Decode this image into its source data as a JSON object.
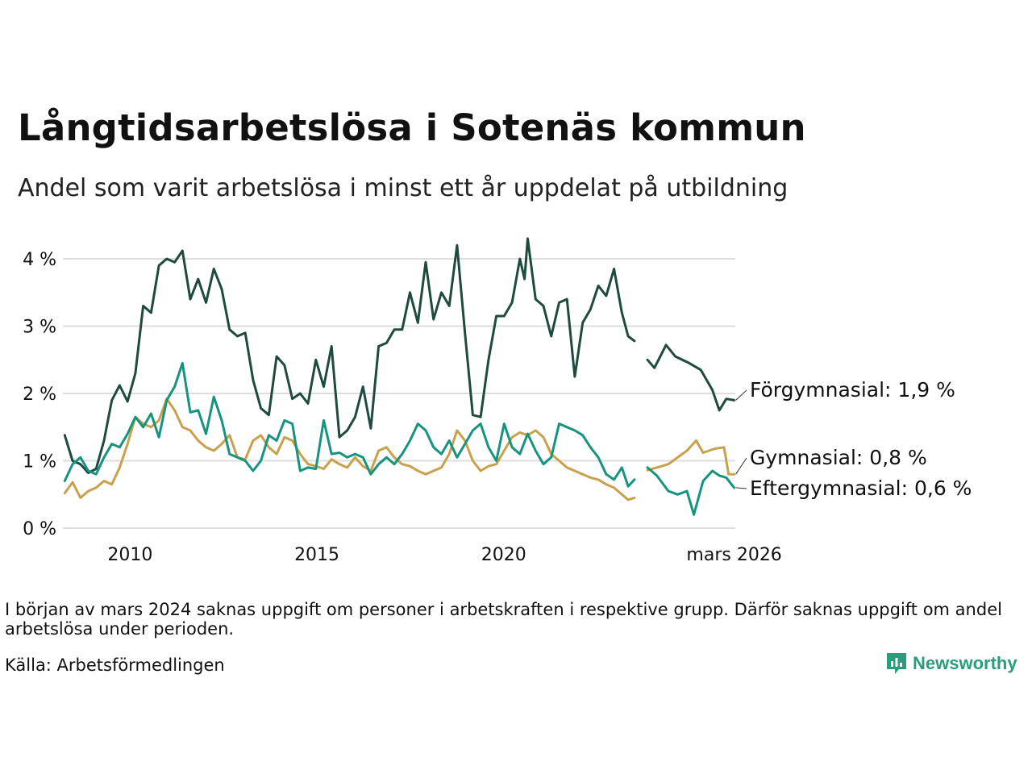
{
  "header": {
    "title": "Långtidsarbetslösa i Sotenäs kommun",
    "subtitle": "Andel som varit arbetslösa i minst ett år uppdelat på utbildning"
  },
  "footer": {
    "note": "I början av mars 2024 saknas uppgift om personer i arbetskraften i respektive grupp. Därför saknas uppgift om andel arbetslösa under perioden.",
    "source": "Källa: Arbetsförmedlingen",
    "brand": "Newsworthy"
  },
  "colors": {
    "forgymnasial": "#1f4a40",
    "gymnasial": "#c9a04c",
    "eftergymnasial": "#17947f",
    "grid": "#dedede",
    "brand": "#2a9d7d"
  },
  "chart_data": {
    "type": "line",
    "title": "Långtidsarbetslösa i Sotenäs kommun",
    "xlabel": "",
    "ylabel": "",
    "xlim": [
      2008.2,
      2026.2
    ],
    "ylim": [
      0,
      4.3
    ],
    "x_ticks": [
      {
        "value": 2010,
        "label": "2010"
      },
      {
        "value": 2015,
        "label": "2015"
      },
      {
        "value": 2020,
        "label": "2020"
      },
      {
        "value": 2026.17,
        "label": "mars 2026"
      }
    ],
    "y_ticks": [
      {
        "value": 0,
        "label": "0 %"
      },
      {
        "value": 1,
        "label": "1 %"
      },
      {
        "value": 2,
        "label": "2 %"
      },
      {
        "value": 3,
        "label": "3 %"
      },
      {
        "value": 4,
        "label": "4 %"
      }
    ],
    "gap": [
      2023.6,
      2024.3
    ],
    "series": [
      {
        "name": "Förgymnasial",
        "end_label": "Förgymnasial: 1,9 %",
        "color": "#1f4a40",
        "points": [
          [
            2008.25,
            1.38
          ],
          [
            2008.5,
            1.0
          ],
          [
            2008.75,
            0.95
          ],
          [
            2009.0,
            0.82
          ],
          [
            2009.25,
            0.88
          ],
          [
            2009.5,
            1.3
          ],
          [
            2009.75,
            1.9
          ],
          [
            2010.0,
            2.12
          ],
          [
            2010.25,
            1.88
          ],
          [
            2010.5,
            2.3
          ],
          [
            2010.75,
            3.3
          ],
          [
            2011.0,
            3.2
          ],
          [
            2011.25,
            3.9
          ],
          [
            2011.5,
            4.0
          ],
          [
            2011.75,
            3.95
          ],
          [
            2012.0,
            4.12
          ],
          [
            2012.25,
            3.4
          ],
          [
            2012.5,
            3.7
          ],
          [
            2012.75,
            3.35
          ],
          [
            2013.0,
            3.85
          ],
          [
            2013.25,
            3.55
          ],
          [
            2013.5,
            2.95
          ],
          [
            2013.75,
            2.85
          ],
          [
            2014.0,
            2.9
          ],
          [
            2014.25,
            2.2
          ],
          [
            2014.5,
            1.78
          ],
          [
            2014.75,
            1.68
          ],
          [
            2015.0,
            2.55
          ],
          [
            2015.25,
            2.42
          ],
          [
            2015.5,
            1.92
          ],
          [
            2015.75,
            2.0
          ],
          [
            2016.0,
            1.85
          ],
          [
            2016.25,
            2.5
          ],
          [
            2016.5,
            2.1
          ],
          [
            2016.75,
            2.7
          ],
          [
            2017.0,
            1.35
          ],
          [
            2017.25,
            1.45
          ],
          [
            2017.5,
            1.65
          ],
          [
            2017.75,
            2.1
          ],
          [
            2018.0,
            1.48
          ],
          [
            2018.25,
            2.7
          ],
          [
            2018.5,
            2.75
          ],
          [
            2018.75,
            2.95
          ],
          [
            2019.0,
            2.95
          ],
          [
            2019.25,
            3.5
          ],
          [
            2019.5,
            3.05
          ],
          [
            2019.75,
            3.95
          ],
          [
            2020.0,
            3.1
          ],
          [
            2020.25,
            3.5
          ],
          [
            2020.5,
            3.3
          ],
          [
            2020.75,
            4.2
          ],
          [
            2021.0,
            2.9
          ],
          [
            2021.25,
            1.68
          ],
          [
            2021.5,
            1.65
          ],
          [
            2021.75,
            2.5
          ],
          [
            2022.0,
            3.15
          ],
          [
            2022.25,
            3.15
          ],
          [
            2022.5,
            3.35
          ],
          [
            2022.75,
            4.0
          ],
          [
            2022.9,
            3.7
          ],
          [
            2023.0,
            4.3
          ],
          [
            2023.25,
            3.4
          ],
          [
            2023.5,
            3.3
          ],
          [
            2023.75,
            2.85
          ],
          [
            2024.0,
            3.35
          ],
          [
            2024.25,
            3.4
          ],
          [
            2024.5,
            2.25
          ],
          [
            2024.75,
            3.05
          ],
          [
            2025.0,
            3.25
          ],
          [
            2025.25,
            3.6
          ],
          [
            2025.5,
            3.45
          ],
          [
            2025.75,
            3.85
          ],
          [
            2026.0,
            3.2
          ],
          [
            2026.2,
            2.85
          ],
          [
            2026.4,
            2.78
          ],
          null,
          [
            2024.3,
            2.5
          ],
          [
            2024.45,
            2.38
          ],
          [
            2024.7,
            2.72
          ],
          [
            2024.9,
            2.55
          ],
          [
            2025.2,
            2.45
          ],
          [
            2025.45,
            2.35
          ],
          [
            2025.7,
            2.05
          ],
          [
            2025.85,
            1.75
          ],
          [
            2026.0,
            1.92
          ],
          [
            2026.17,
            1.9
          ]
        ]
      },
      {
        "name": "Gymnasial",
        "end_label": "Gymnasial: 0,8 %",
        "color": "#c9a04c",
        "points": [
          [
            2008.25,
            0.52
          ],
          [
            2008.5,
            0.68
          ],
          [
            2008.75,
            0.45
          ],
          [
            2009.0,
            0.55
          ],
          [
            2009.25,
            0.6
          ],
          [
            2009.5,
            0.7
          ],
          [
            2009.75,
            0.65
          ],
          [
            2010.0,
            0.9
          ],
          [
            2010.25,
            1.25
          ],
          [
            2010.5,
            1.65
          ],
          [
            2010.75,
            1.55
          ],
          [
            2011.0,
            1.5
          ],
          [
            2011.25,
            1.6
          ],
          [
            2011.5,
            1.92
          ],
          [
            2011.75,
            1.75
          ],
          [
            2012.0,
            1.5
          ],
          [
            2012.25,
            1.45
          ],
          [
            2012.5,
            1.3
          ],
          [
            2012.75,
            1.2
          ],
          [
            2013.0,
            1.15
          ],
          [
            2013.25,
            1.25
          ],
          [
            2013.5,
            1.38
          ],
          [
            2013.75,
            1.05
          ],
          [
            2014.0,
            1.02
          ],
          [
            2014.25,
            1.3
          ],
          [
            2014.5,
            1.38
          ],
          [
            2014.75,
            1.2
          ],
          [
            2015.0,
            1.1
          ],
          [
            2015.25,
            1.35
          ],
          [
            2015.5,
            1.3
          ],
          [
            2015.75,
            1.1
          ],
          [
            2016.0,
            0.95
          ],
          [
            2016.25,
            0.92
          ],
          [
            2016.5,
            0.88
          ],
          [
            2016.75,
            1.02
          ],
          [
            2017.0,
            0.95
          ],
          [
            2017.25,
            0.9
          ],
          [
            2017.5,
            1.05
          ],
          [
            2017.75,
            0.92
          ],
          [
            2018.0,
            0.85
          ],
          [
            2018.25,
            1.15
          ],
          [
            2018.5,
            1.2
          ],
          [
            2018.75,
            1.05
          ],
          [
            2019.0,
            0.95
          ],
          [
            2019.25,
            0.92
          ],
          [
            2019.5,
            0.85
          ],
          [
            2019.75,
            0.8
          ],
          [
            2020.0,
            0.85
          ],
          [
            2020.25,
            0.9
          ],
          [
            2020.5,
            1.1
          ],
          [
            2020.75,
            1.45
          ],
          [
            2021.0,
            1.3
          ],
          [
            2021.25,
            1.0
          ],
          [
            2021.5,
            0.85
          ],
          [
            2021.75,
            0.92
          ],
          [
            2022.0,
            0.95
          ],
          [
            2022.25,
            1.15
          ],
          [
            2022.5,
            1.35
          ],
          [
            2022.75,
            1.42
          ],
          [
            2023.0,
            1.38
          ],
          [
            2023.25,
            1.45
          ],
          [
            2023.5,
            1.35
          ],
          [
            2023.75,
            1.1
          ],
          [
            2024.0,
            1.0
          ],
          [
            2024.25,
            0.9
          ],
          [
            2024.5,
            0.85
          ],
          [
            2024.75,
            0.8
          ],
          [
            2025.0,
            0.75
          ],
          [
            2025.25,
            0.72
          ],
          [
            2025.5,
            0.65
          ],
          [
            2025.75,
            0.6
          ],
          [
            2026.0,
            0.5
          ],
          [
            2026.2,
            0.42
          ],
          [
            2026.4,
            0.45
          ],
          null,
          [
            2024.3,
            0.86
          ],
          [
            2024.5,
            0.9
          ],
          [
            2024.75,
            0.95
          ],
          [
            2024.95,
            1.05
          ],
          [
            2025.15,
            1.15
          ],
          [
            2025.35,
            1.3
          ],
          [
            2025.5,
            1.12
          ],
          [
            2025.75,
            1.18
          ],
          [
            2025.95,
            1.2
          ],
          [
            2026.05,
            0.8
          ],
          [
            2026.17,
            0.8
          ]
        ]
      },
      {
        "name": "Eftergymnasial",
        "end_label": "Eftergymnasial: 0,6 %",
        "color": "#17947f",
        "points": [
          [
            2008.25,
            0.7
          ],
          [
            2008.5,
            0.95
          ],
          [
            2008.75,
            1.05
          ],
          [
            2009.0,
            0.85
          ],
          [
            2009.25,
            0.8
          ],
          [
            2009.5,
            1.05
          ],
          [
            2009.75,
            1.25
          ],
          [
            2010.0,
            1.2
          ],
          [
            2010.25,
            1.4
          ],
          [
            2010.5,
            1.65
          ],
          [
            2010.75,
            1.5
          ],
          [
            2011.0,
            1.7
          ],
          [
            2011.25,
            1.35
          ],
          [
            2011.5,
            1.9
          ],
          [
            2011.75,
            2.1
          ],
          [
            2012.0,
            2.45
          ],
          [
            2012.25,
            1.72
          ],
          [
            2012.5,
            1.75
          ],
          [
            2012.75,
            1.4
          ],
          [
            2013.0,
            1.95
          ],
          [
            2013.25,
            1.6
          ],
          [
            2013.5,
            1.1
          ],
          [
            2013.75,
            1.05
          ],
          [
            2014.0,
            1.0
          ],
          [
            2014.25,
            0.85
          ],
          [
            2014.5,
            1.0
          ],
          [
            2014.75,
            1.38
          ],
          [
            2015.0,
            1.3
          ],
          [
            2015.25,
            1.6
          ],
          [
            2015.5,
            1.55
          ],
          [
            2015.75,
            0.85
          ],
          [
            2016.0,
            0.9
          ],
          [
            2016.25,
            0.88
          ],
          [
            2016.5,
            1.6
          ],
          [
            2016.75,
            1.1
          ],
          [
            2017.0,
            1.12
          ],
          [
            2017.25,
            1.05
          ],
          [
            2017.5,
            1.1
          ],
          [
            2017.75,
            1.05
          ],
          [
            2018.0,
            0.8
          ],
          [
            2018.25,
            0.95
          ],
          [
            2018.5,
            1.05
          ],
          [
            2018.75,
            0.95
          ],
          [
            2019.0,
            1.1
          ],
          [
            2019.25,
            1.3
          ],
          [
            2019.5,
            1.55
          ],
          [
            2019.75,
            1.45
          ],
          [
            2020.0,
            1.2
          ],
          [
            2020.25,
            1.1
          ],
          [
            2020.5,
            1.3
          ],
          [
            2020.75,
            1.05
          ],
          [
            2021.0,
            1.25
          ],
          [
            2021.25,
            1.45
          ],
          [
            2021.5,
            1.55
          ],
          [
            2021.75,
            1.2
          ],
          [
            2022.0,
            1.0
          ],
          [
            2022.25,
            1.55
          ],
          [
            2022.5,
            1.2
          ],
          [
            2022.75,
            1.1
          ],
          [
            2023.0,
            1.4
          ],
          [
            2023.25,
            1.15
          ],
          [
            2023.5,
            0.95
          ],
          [
            2023.75,
            1.05
          ],
          [
            2024.0,
            1.55
          ],
          [
            2024.25,
            1.5
          ],
          [
            2024.5,
            1.45
          ],
          [
            2024.75,
            1.38
          ],
          [
            2025.0,
            1.2
          ],
          [
            2025.25,
            1.05
          ],
          [
            2025.5,
            0.8
          ],
          [
            2025.75,
            0.72
          ],
          [
            2026.0,
            0.9
          ],
          [
            2026.2,
            0.62
          ],
          [
            2026.4,
            0.72
          ],
          null,
          [
            2024.3,
            0.9
          ],
          [
            2024.5,
            0.78
          ],
          [
            2024.75,
            0.55
          ],
          [
            2024.95,
            0.5
          ],
          [
            2025.15,
            0.55
          ],
          [
            2025.3,
            0.2
          ],
          [
            2025.5,
            0.7
          ],
          [
            2025.7,
            0.85
          ],
          [
            2025.85,
            0.78
          ],
          [
            2026.0,
            0.75
          ],
          [
            2026.17,
            0.6
          ]
        ]
      }
    ]
  }
}
